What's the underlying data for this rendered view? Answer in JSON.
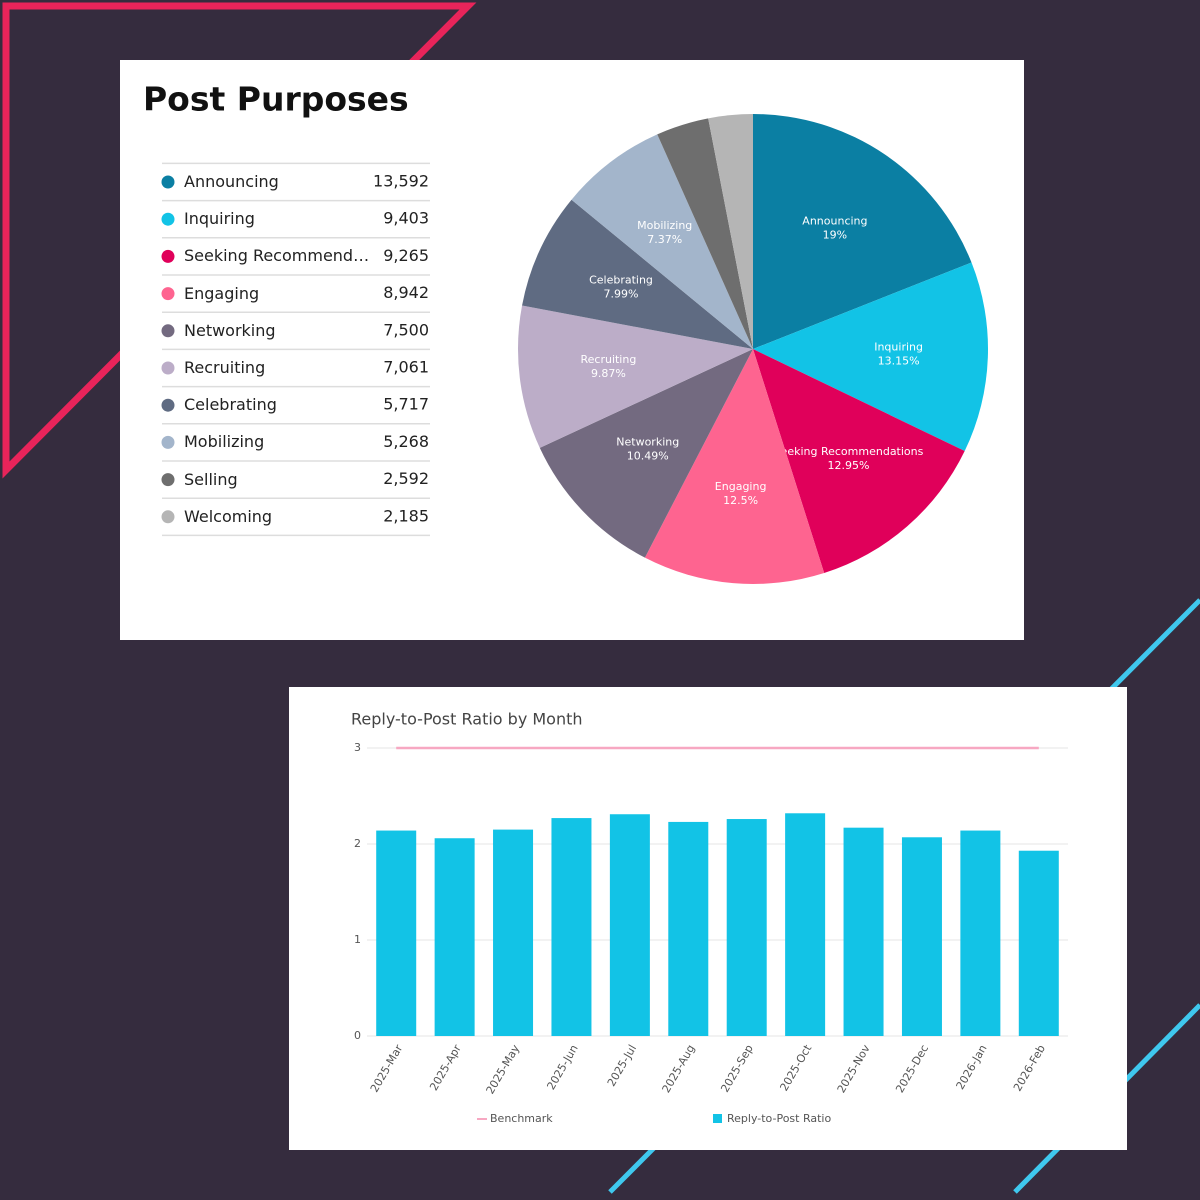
{
  "chart_data": [
    {
      "type": "pie",
      "title": "Post Purposes",
      "categories": [
        "Announcing",
        "Inquiring",
        "Seeking Recommendations",
        "Engaging",
        "Networking",
        "Recruiting",
        "Celebrating",
        "Mobilizing",
        "Selling",
        "Welcoming"
      ],
      "values": [
        13592,
        9403,
        9265,
        8942,
        7500,
        7061,
        5717,
        5268,
        2592,
        2185
      ],
      "value_labels": [
        "13,592",
        "9,403",
        "9,265",
        "8,942",
        "7,500",
        "7,061",
        "5,717",
        "5,268",
        "2,592",
        "2,185"
      ],
      "percent_labels": [
        "19%",
        "13.15%",
        "12.95%",
        "12.5%",
        "10.49%",
        "9.87%",
        "7.99%",
        "7.37%",
        null,
        null
      ],
      "colors": [
        "#0b7fa3",
        "#12c3e6",
        "#e0005a",
        "#fe6490",
        "#736a80",
        "#bcadc8",
        "#5f6b82",
        "#a3b5cb",
        "#6e6e6e",
        "#b5b5b5"
      ]
    },
    {
      "type": "bar",
      "title": "Reply-to-Post Ratio by Month",
      "categories": [
        "2025-Mar",
        "2025-Apr",
        "2025-May",
        "2025-Jun",
        "2025-Jul",
        "2025-Aug",
        "2025-Sep",
        "2025-Oct",
        "2025-Nov",
        "2025-Dec",
        "2026-Jan",
        "2026-Feb"
      ],
      "series": [
        {
          "name": "Benchmark",
          "type": "line",
          "color": "#f7a8c2",
          "values": [
            3,
            3,
            3,
            3,
            3,
            3,
            3,
            3,
            3,
            3,
            3,
            3
          ]
        },
        {
          "name": "Reply-to-Post Ratio",
          "type": "bar",
          "color": "#12c3e6",
          "values": [
            2.14,
            2.06,
            2.15,
            2.27,
            2.31,
            2.23,
            2.26,
            2.32,
            2.17,
            2.07,
            2.14,
            1.93
          ]
        }
      ],
      "ylim": [
        0,
        3
      ],
      "yticks": [
        0,
        1,
        2,
        3
      ],
      "grid": true
    }
  ]
}
